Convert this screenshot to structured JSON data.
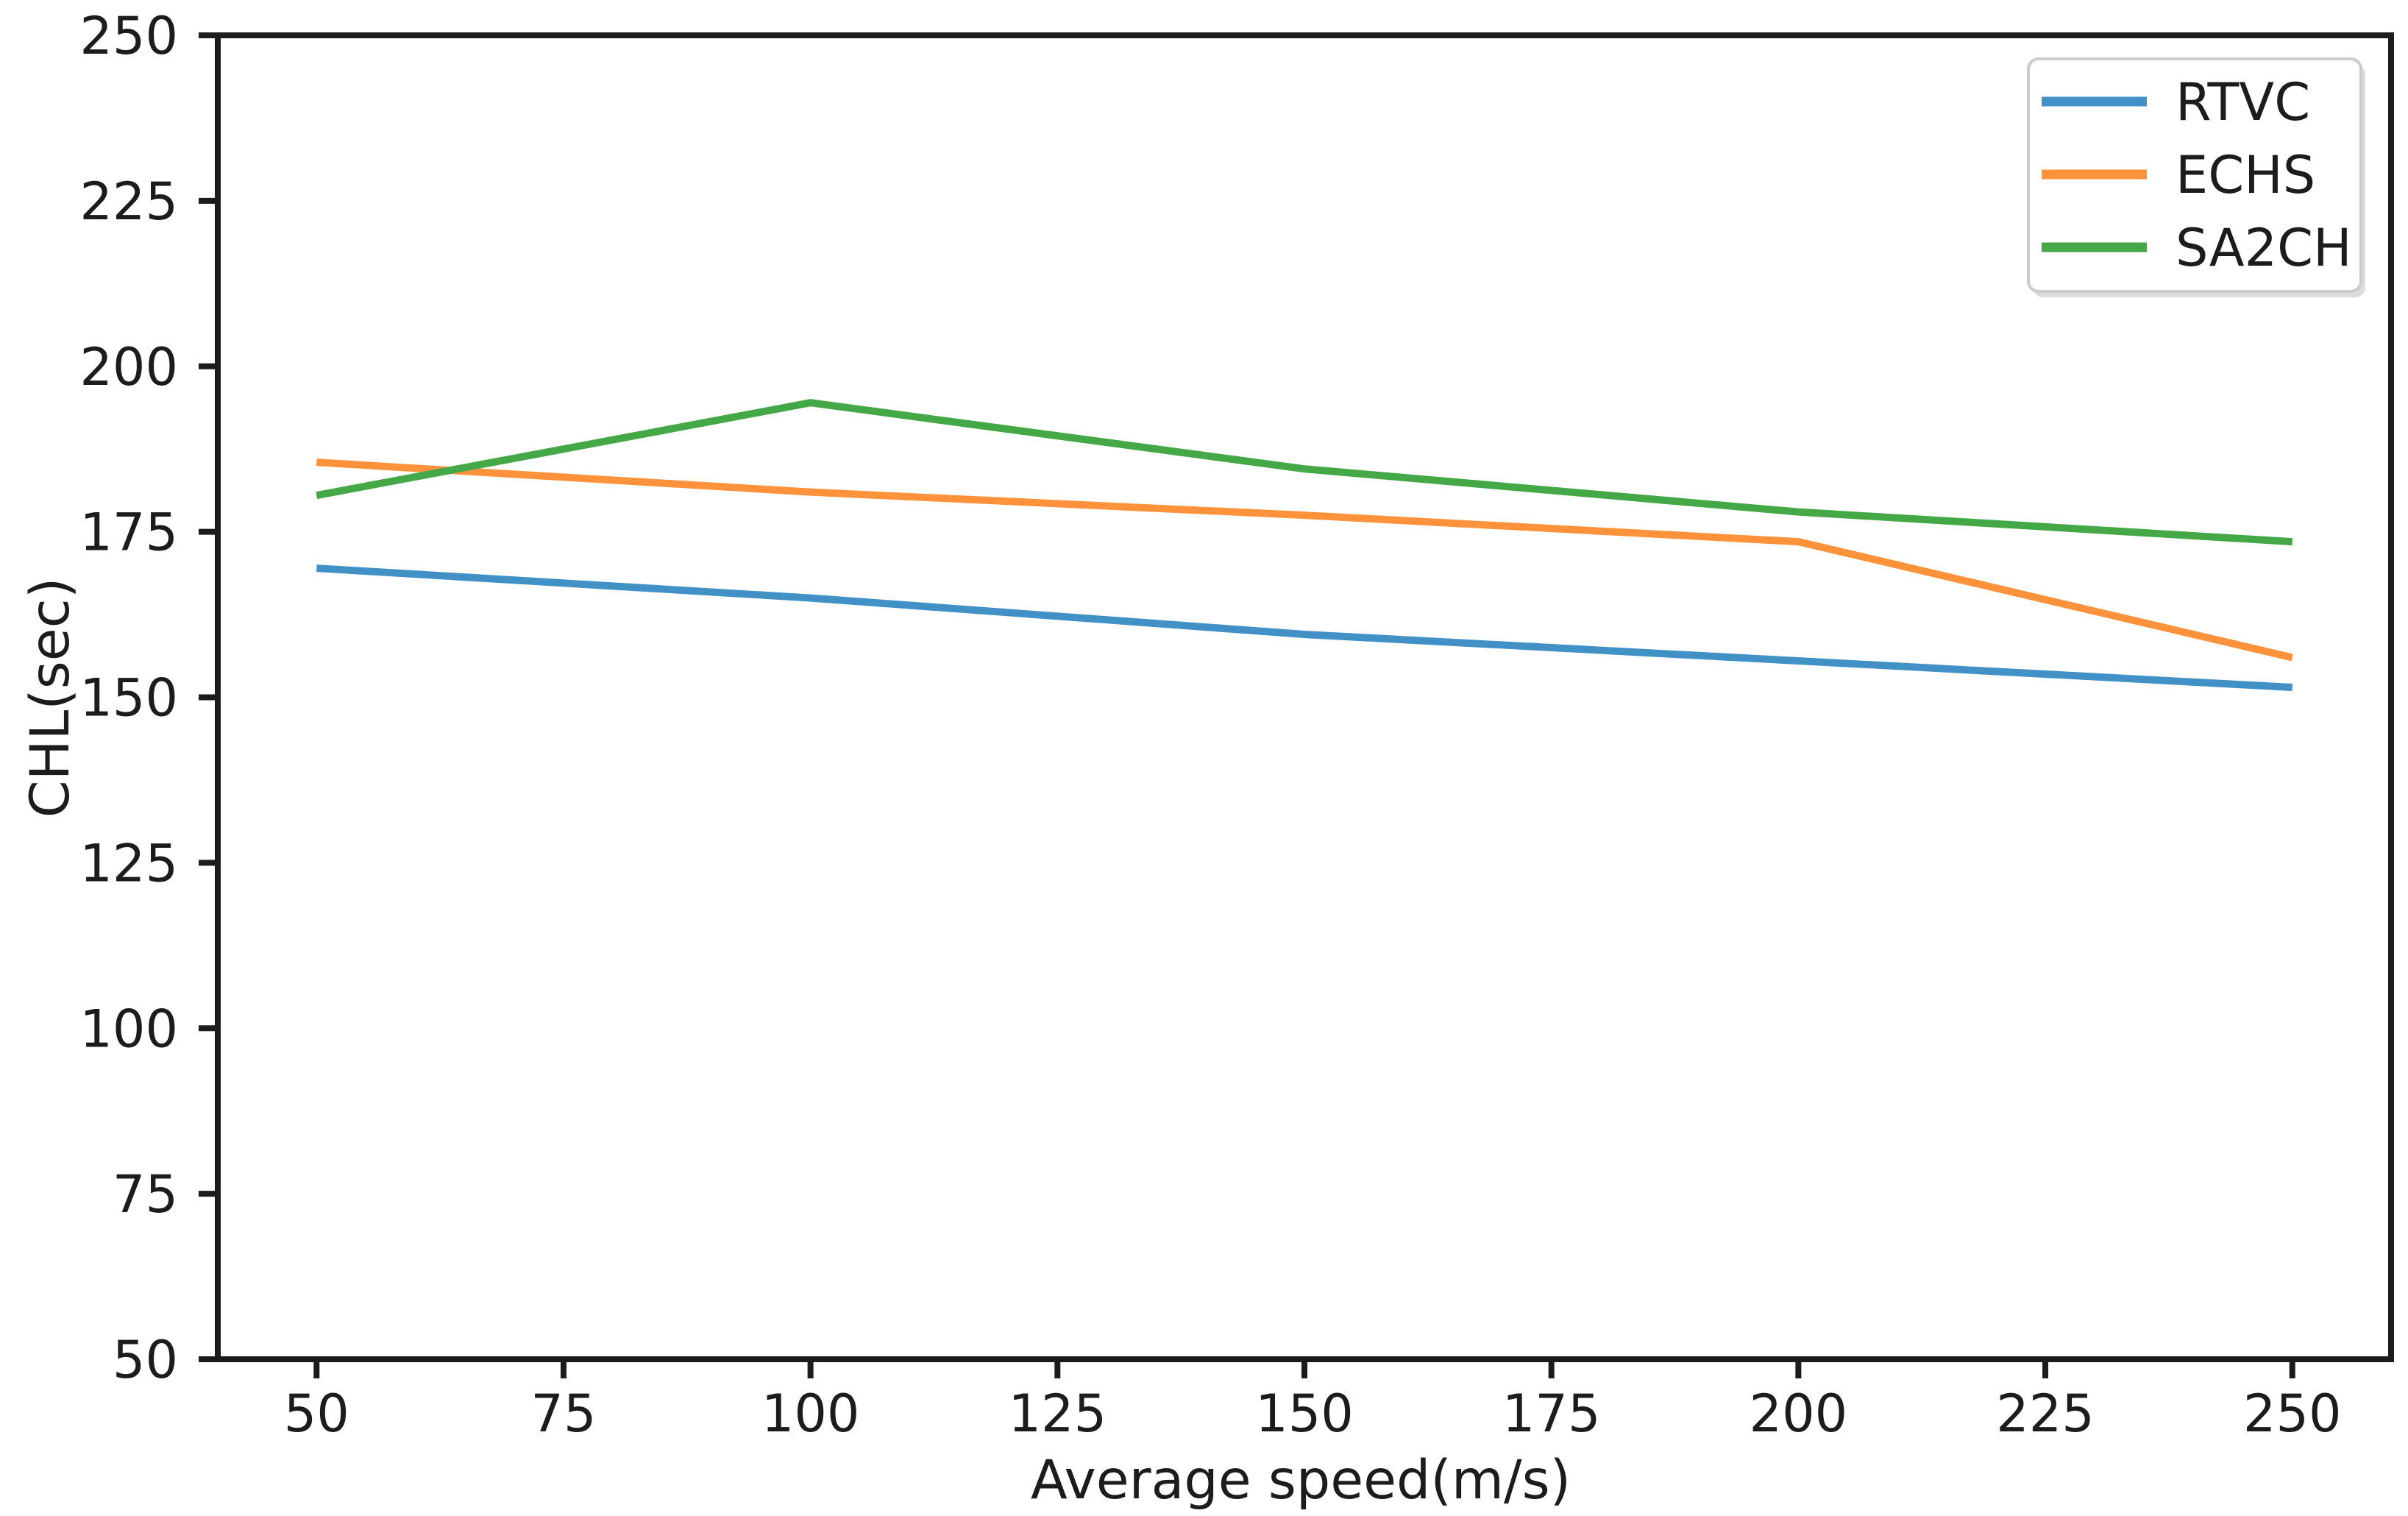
{
  "chart_data": {
    "type": "line",
    "title": "",
    "xlabel": "Average speed(m/s)",
    "ylabel": "CHL(sec)",
    "x": [
      50,
      100,
      150,
      200,
      250
    ],
    "series": [
      {
        "name": "RTVC",
        "color": "#4191c6",
        "values": [
          169.5,
          165.0,
          159.5,
          155.5,
          151.5
        ]
      },
      {
        "name": "ECHS",
        "color": "#ff923a",
        "values": [
          185.5,
          181.0,
          177.5,
          173.5,
          156.0
        ]
      },
      {
        "name": "SA2CH",
        "color": "#44a846",
        "values": [
          180.5,
          194.5,
          184.5,
          178.0,
          173.5
        ]
      }
    ],
    "xticks": [
      50,
      75,
      100,
      125,
      150,
      175,
      200,
      225,
      250
    ],
    "yticks": [
      50,
      75,
      100,
      125,
      150,
      175,
      200,
      225,
      250
    ],
    "xlim": [
      40,
      260
    ],
    "ylim": [
      50,
      250
    ],
    "grid": false,
    "legend": {
      "position": "upper right",
      "entries": [
        "RTVC",
        "ECHS",
        "SA2CH"
      ]
    },
    "axis_color": "#1c1c1c",
    "legend_border_color": "#cccccc",
    "background": "#ffffff"
  }
}
